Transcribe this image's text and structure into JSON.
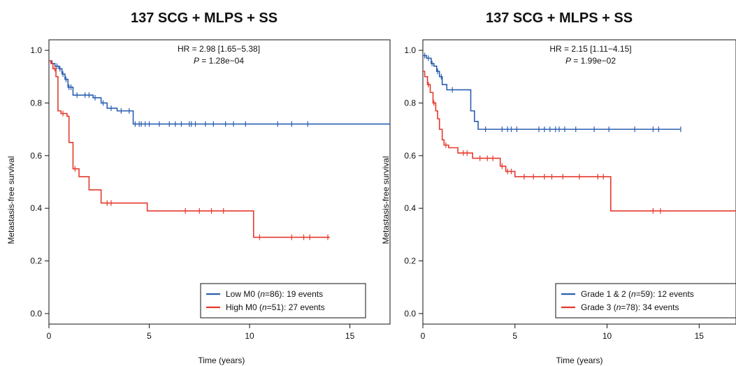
{
  "colors": {
    "low_series": "#2b5fb0",
    "high_series": "#e53a2c",
    "axis": "#111111"
  },
  "chart_data": [
    {
      "type": "line",
      "subtype": "kaplan-meier",
      "title": "137 SCG + MLPS + SS",
      "xlabel": "Time (years)",
      "ylabel": "Metastasis-free survival",
      "xlim": [
        0,
        17
      ],
      "ylim": [
        -0.04,
        1.04
      ],
      "xticks": [
        0,
        5,
        10,
        15
      ],
      "yticks": [
        "0.0",
        "0.2",
        "0.4",
        "0.6",
        "0.8",
        "1.0"
      ],
      "stat_line1": "HR = 2.98 [1.65−5.38]",
      "stat_p_symbol": "P",
      "stat_p_value": " = 1.28e−04",
      "legend_position": "bottom-right",
      "series": [
        {
          "legend_prefix": "Low M0 (",
          "legend_n": "n",
          "legend_suffix": "=86): 19 events",
          "color_key": "low_series",
          "x": [
            0,
            0.15,
            0.3,
            0.5,
            0.65,
            0.8,
            0.95,
            1.2,
            2.2,
            2.6,
            2.9,
            3.4,
            4.2,
            17
          ],
          "y": [
            0.96,
            0.95,
            0.94,
            0.93,
            0.91,
            0.89,
            0.86,
            0.83,
            0.82,
            0.8,
            0.78,
            0.77,
            0.72,
            0.72
          ],
          "censor_x": [
            0.4,
            0.55,
            0.7,
            0.85,
            1.0,
            1.1,
            1.4,
            1.8,
            2.0,
            2.3,
            2.7,
            3.1,
            3.6,
            4.0,
            4.3,
            4.5,
            4.6,
            4.8,
            5.0,
            5.5,
            6.0,
            6.3,
            6.6,
            7.0,
            7.1,
            7.3,
            7.8,
            8.2,
            8.8,
            9.2,
            9.8,
            11.4,
            12.1,
            12.9
          ]
        },
        {
          "legend_prefix": "High M0 (",
          "legend_n": "n",
          "legend_suffix": "=51): 27 events",
          "color_key": "high_series",
          "x": [
            0,
            0.1,
            0.2,
            0.35,
            0.45,
            0.6,
            0.9,
            1.0,
            1.2,
            1.5,
            2.0,
            2.6,
            4.9,
            10.2,
            14
          ],
          "y": [
            0.96,
            0.95,
            0.93,
            0.9,
            0.77,
            0.76,
            0.75,
            0.65,
            0.55,
            0.52,
            0.47,
            0.42,
            0.39,
            0.29,
            0.29
          ],
          "censor_x": [
            0.3,
            0.7,
            1.3,
            2.9,
            3.1,
            6.8,
            7.5,
            8.1,
            8.7,
            10.5,
            12.1,
            12.7,
            13.0,
            13.9
          ]
        }
      ]
    },
    {
      "type": "line",
      "subtype": "kaplan-meier",
      "title": "137 SCG + MLPS + SS",
      "xlabel": "Time (years)",
      "ylabel": "Metastasis-free survival",
      "xlim": [
        0,
        17
      ],
      "ylim": [
        -0.04,
        1.04
      ],
      "xticks": [
        0,
        5,
        10,
        15
      ],
      "yticks": [
        "0.0",
        "0.2",
        "0.4",
        "0.6",
        "0.8",
        "1.0"
      ],
      "stat_line1": "HR = 2.15 [1.11−4.15]",
      "stat_p_symbol": "P",
      "stat_p_value": " = 1.99e−02",
      "legend_position": "bottom-right",
      "series": [
        {
          "legend_prefix": "Grade 1 & 2 (",
          "legend_n": "n",
          "legend_suffix": "=59): 12 events",
          "color_key": "low_series",
          "x": [
            0,
            0.2,
            0.45,
            0.6,
            0.75,
            0.9,
            1.05,
            1.3,
            2.6,
            2.8,
            3.0,
            14
          ],
          "y": [
            0.98,
            0.97,
            0.95,
            0.94,
            0.92,
            0.9,
            0.87,
            0.85,
            0.77,
            0.73,
            0.7,
            0.7
          ],
          "censor_x": [
            0.1,
            0.3,
            0.5,
            0.8,
            1.0,
            1.6,
            3.4,
            4.3,
            4.6,
            4.8,
            5.1,
            6.3,
            6.6,
            6.9,
            7.2,
            7.4,
            7.7,
            8.3,
            9.3,
            10.1,
            11.5,
            12.5,
            12.8,
            14.0
          ]
        },
        {
          "legend_prefix": "Grade 3 (",
          "legend_n": "n",
          "legend_suffix": "=78): 34 events",
          "color_key": "high_series",
          "x": [
            0,
            0.1,
            0.25,
            0.4,
            0.55,
            0.7,
            0.8,
            0.9,
            1.05,
            1.15,
            1.4,
            1.9,
            2.7,
            4.2,
            4.5,
            5.0,
            10.2,
            17
          ],
          "y": [
            0.92,
            0.9,
            0.87,
            0.84,
            0.8,
            0.77,
            0.74,
            0.7,
            0.66,
            0.64,
            0.63,
            0.61,
            0.59,
            0.56,
            0.54,
            0.52,
            0.39,
            0.39
          ],
          "censor_x": [
            0.3,
            0.6,
            1.25,
            2.2,
            2.4,
            3.1,
            3.5,
            3.8,
            4.3,
            4.6,
            4.8,
            5.5,
            6.0,
            6.6,
            7.0,
            7.6,
            8.5,
            9.5,
            9.8,
            12.5,
            12.9
          ]
        }
      ]
    }
  ]
}
